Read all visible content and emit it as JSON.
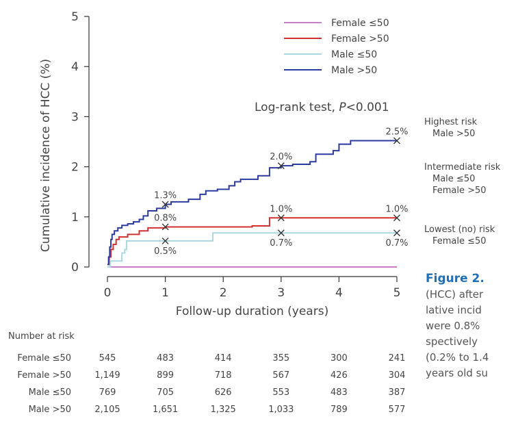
{
  "chart_data": {
    "type": "line",
    "xlabel": "Follow-up duration (years)",
    "ylabel": "Cumulative incidence of HCC (%)",
    "xlim": [
      0,
      5
    ],
    "ylim": [
      0,
      5
    ],
    "xticks": [
      "0",
      "1",
      "2",
      "3",
      "4",
      "5"
    ],
    "yticks": [
      "0",
      "1",
      "2",
      "3",
      "4",
      "5"
    ],
    "annotation": "Log-rank test, P<0.001",
    "legend_position": "top-right",
    "series": [
      {
        "name": "Female ≤50",
        "color": "#c77fc7",
        "points": [
          [
            0,
            0
          ],
          [
            5,
            0
          ]
        ]
      },
      {
        "name": "Female >50",
        "color": "#d03030",
        "points": [
          [
            0,
            0.05
          ],
          [
            0.03,
            0.2
          ],
          [
            0.06,
            0.35
          ],
          [
            0.1,
            0.45
          ],
          [
            0.15,
            0.55
          ],
          [
            0.2,
            0.6
          ],
          [
            0.35,
            0.65
          ],
          [
            0.55,
            0.72
          ],
          [
            0.7,
            0.78
          ],
          [
            1.0,
            0.8
          ],
          [
            1.5,
            0.8
          ],
          [
            2.0,
            0.8
          ],
          [
            2.5,
            0.82
          ],
          [
            2.8,
            0.98
          ],
          [
            3.0,
            0.98
          ],
          [
            5.0,
            0.98
          ]
        ]
      },
      {
        "name": "Male ≤50",
        "color": "#a8d8e0",
        "points": [
          [
            0,
            0
          ],
          [
            0.05,
            0.12
          ],
          [
            0.2,
            0.12
          ],
          [
            0.25,
            0.28
          ],
          [
            0.3,
            0.35
          ],
          [
            0.33,
            0.52
          ],
          [
            1.0,
            0.52
          ],
          [
            1.8,
            0.52
          ],
          [
            1.82,
            0.68
          ],
          [
            3.0,
            0.68
          ],
          [
            5.0,
            0.68
          ]
        ]
      },
      {
        "name": "Male >50",
        "color": "#2a3aa0",
        "points": [
          [
            0,
            0.05
          ],
          [
            0.02,
            0.2
          ],
          [
            0.04,
            0.4
          ],
          [
            0.06,
            0.55
          ],
          [
            0.08,
            0.65
          ],
          [
            0.12,
            0.72
          ],
          [
            0.18,
            0.78
          ],
          [
            0.25,
            0.83
          ],
          [
            0.35,
            0.86
          ],
          [
            0.45,
            0.9
          ],
          [
            0.55,
            0.95
          ],
          [
            0.62,
            1.02
          ],
          [
            0.7,
            1.12
          ],
          [
            0.85,
            1.17
          ],
          [
            1.0,
            1.25
          ],
          [
            1.1,
            1.3
          ],
          [
            1.4,
            1.35
          ],
          [
            1.6,
            1.45
          ],
          [
            1.7,
            1.52
          ],
          [
            1.9,
            1.55
          ],
          [
            2.1,
            1.62
          ],
          [
            2.2,
            1.7
          ],
          [
            2.3,
            1.75
          ],
          [
            2.6,
            1.82
          ],
          [
            2.8,
            1.98
          ],
          [
            3.0,
            2.02
          ],
          [
            3.2,
            2.05
          ],
          [
            3.5,
            2.1
          ],
          [
            3.6,
            2.25
          ],
          [
            3.9,
            2.32
          ],
          [
            4.0,
            2.45
          ],
          [
            4.2,
            2.52
          ],
          [
            4.6,
            2.52
          ],
          [
            5.0,
            2.52
          ]
        ]
      }
    ],
    "markers": [
      {
        "x": 1,
        "y": 1.25,
        "label": "1.3%",
        "pos": "above"
      },
      {
        "x": 1,
        "y": 0.8,
        "label": "0.8%",
        "pos": "above"
      },
      {
        "x": 1,
        "y": 0.52,
        "label": "0.5%",
        "pos": "below"
      },
      {
        "x": 3,
        "y": 2.02,
        "label": "2.0%",
        "pos": "above"
      },
      {
        "x": 3,
        "y": 0.98,
        "label": "1.0%",
        "pos": "above"
      },
      {
        "x": 3,
        "y": 0.68,
        "label": "0.7%",
        "pos": "below"
      },
      {
        "x": 5,
        "y": 2.52,
        "label": "2.5%",
        "pos": "above"
      },
      {
        "x": 5,
        "y": 0.98,
        "label": "1.0%",
        "pos": "above"
      },
      {
        "x": 5,
        "y": 0.68,
        "label": "0.7%",
        "pos": "below"
      }
    ]
  },
  "annotation": {
    "prefix": "Log-rank test, ",
    "p": "P",
    "suffix": "<0.001"
  },
  "risk_groups": [
    {
      "head": "Highest risk",
      "items": [
        "Male >50"
      ]
    },
    {
      "head": "Intermediate risk",
      "items": [
        "Male ≤50",
        "Female >50"
      ]
    },
    {
      "head": "Lowest (no) risk",
      "items": [
        "Female ≤50"
      ]
    }
  ],
  "number_at_risk": {
    "header": "Number at risk",
    "rows": [
      {
        "label": "Female ≤50",
        "values": [
          "545",
          "483",
          "414",
          "355",
          "300",
          "241"
        ]
      },
      {
        "label": "Female >50",
        "values": [
          "1,149",
          "899",
          "718",
          "567",
          "426",
          "304"
        ]
      },
      {
        "label": "Male ≤50",
        "values": [
          "769",
          "705",
          "626",
          "553",
          "483",
          "387"
        ]
      },
      {
        "label": "Male >50",
        "values": [
          "2,105",
          "1,651",
          "1,325",
          "1,033",
          "789",
          "577"
        ]
      }
    ]
  },
  "caption": {
    "figure_label": "Figure 2.",
    "lines": [
      "(HCC) after",
      "lative incid",
      "were 0.8%",
      "spectively",
      "(0.2% to 1.4",
      "years old su"
    ]
  }
}
